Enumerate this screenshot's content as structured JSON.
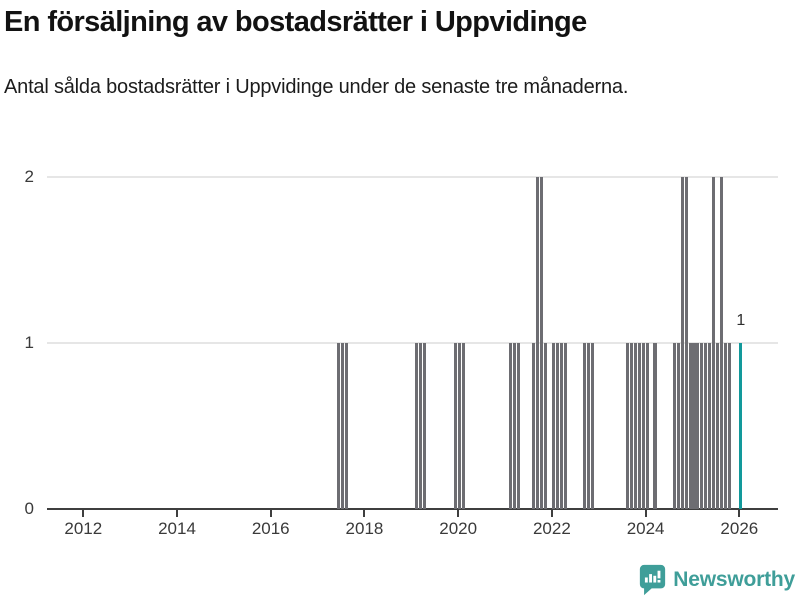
{
  "header": {
    "title": "En försäljning av bostadsrätter i Uppvidinge",
    "subtitle": "Antal sålda bostadsrätter i Uppvidinge under de senaste tre månaderna."
  },
  "chart_data": {
    "type": "bar",
    "title": "En försäljning av bostadsrätter i Uppvidinge",
    "subtitle": "Antal sålda bostadsrätter i Uppvidinge under de senaste tre månaderna.",
    "xlabel": "",
    "ylabel": "",
    "x_axis": {
      "tick_years": [
        2012,
        2014,
        2016,
        2018,
        2020,
        2022,
        2024,
        2026
      ],
      "range": [
        "2011-04",
        "2026-03"
      ]
    },
    "y_axis": {
      "ticks": [
        0,
        1,
        2
      ],
      "range": [
        0,
        2
      ]
    },
    "grid": true,
    "legend": false,
    "bar_color": "#6d6d72",
    "highlight_color": "#12999b",
    "bars": [
      {
        "month": "2017-06",
        "value": 1
      },
      {
        "month": "2017-07",
        "value": 1
      },
      {
        "month": "2017-08",
        "value": 1
      },
      {
        "month": "2019-02",
        "value": 1
      },
      {
        "month": "2019-03",
        "value": 1
      },
      {
        "month": "2019-04",
        "value": 1
      },
      {
        "month": "2019-12",
        "value": 1
      },
      {
        "month": "2020-01",
        "value": 1
      },
      {
        "month": "2020-02",
        "value": 1
      },
      {
        "month": "2021-02",
        "value": 1
      },
      {
        "month": "2021-03",
        "value": 1
      },
      {
        "month": "2021-04",
        "value": 1
      },
      {
        "month": "2021-08",
        "value": 1
      },
      {
        "month": "2021-09",
        "value": 2
      },
      {
        "month": "2021-10",
        "value": 2
      },
      {
        "month": "2021-11",
        "value": 1
      },
      {
        "month": "2022-01",
        "value": 1
      },
      {
        "month": "2022-02",
        "value": 1
      },
      {
        "month": "2022-03",
        "value": 1
      },
      {
        "month": "2022-04",
        "value": 1
      },
      {
        "month": "2022-09",
        "value": 1
      },
      {
        "month": "2022-10",
        "value": 1
      },
      {
        "month": "2022-11",
        "value": 1
      },
      {
        "month": "2023-08",
        "value": 1
      },
      {
        "month": "2023-09",
        "value": 1
      },
      {
        "month": "2023-10",
        "value": 1
      },
      {
        "month": "2023-11",
        "value": 1
      },
      {
        "month": "2023-12",
        "value": 1
      },
      {
        "month": "2024-01",
        "value": 1
      },
      {
        "month": "2024-03",
        "value": 1
      },
      {
        "month": "2024-08",
        "value": 1
      },
      {
        "month": "2024-09",
        "value": 1
      },
      {
        "month": "2024-10",
        "value": 2
      },
      {
        "month": "2024-11",
        "value": 2
      },
      {
        "month": "2024-12",
        "value": 1
      },
      {
        "month": "2025-01",
        "value": 1
      },
      {
        "month": "2025-02",
        "value": 1
      },
      {
        "month": "2025-03",
        "value": 1
      },
      {
        "month": "2025-04",
        "value": 1
      },
      {
        "month": "2025-05",
        "value": 1
      },
      {
        "month": "2025-06",
        "value": 2
      },
      {
        "month": "2025-07",
        "value": 1
      },
      {
        "month": "2025-08",
        "value": 2
      },
      {
        "month": "2025-09",
        "value": 1
      },
      {
        "month": "2025-10",
        "value": 1
      }
    ],
    "highlight_bar": {
      "month": "2026-01",
      "value": 1,
      "label": "1"
    }
  },
  "footer": {
    "brand": "Newsworthy",
    "logo_icon": "newsworthy-speech-bubble-chart-icon",
    "brand_color": "#3f9e99"
  }
}
